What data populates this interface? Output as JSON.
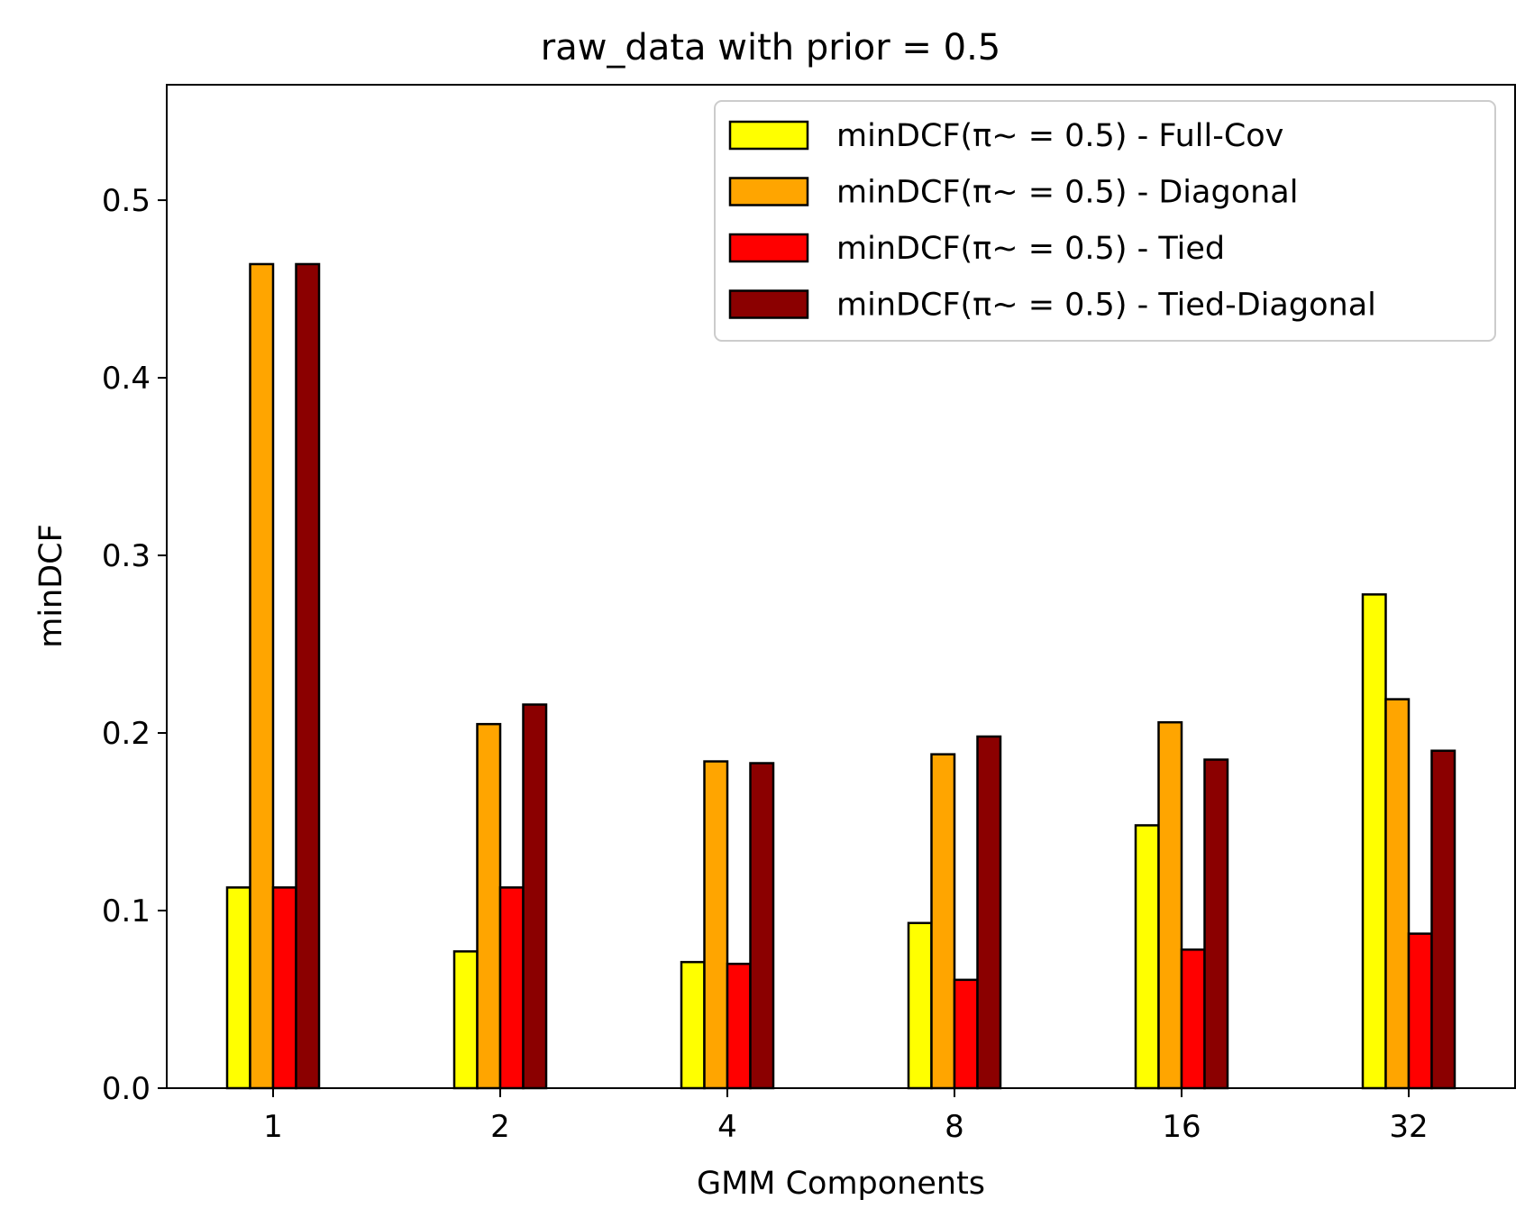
{
  "chart_data": {
    "type": "bar",
    "title": "raw_data with prior = 0.5",
    "xlabel": "GMM Components",
    "ylabel": "minDCF",
    "categories": [
      "1",
      "2",
      "4",
      "8",
      "16",
      "32"
    ],
    "ylim": [
      0,
      0.565
    ],
    "yticks": [
      "0.0",
      "0.1",
      "0.2",
      "0.3",
      "0.4",
      "0.5"
    ],
    "grid": false,
    "legend_position": "top-right",
    "series": [
      {
        "name": "minDCF(π~ = 0.5) - Full-Cov",
        "color": "#ffff00",
        "values": [
          0.113,
          0.077,
          0.071,
          0.093,
          0.148,
          0.278
        ]
      },
      {
        "name": "minDCF(π~ = 0.5) - Diagonal",
        "color": "#ffa500",
        "values": [
          0.464,
          0.205,
          0.184,
          0.188,
          0.206,
          0.219
        ]
      },
      {
        "name": "minDCF(π~ = 0.5) - Tied",
        "color": "#ff0000",
        "values": [
          0.113,
          0.113,
          0.07,
          0.061,
          0.078,
          0.087
        ]
      },
      {
        "name": "minDCF(π~ = 0.5) - Tied-Diagonal",
        "color": "#8b0000",
        "values": [
          0.464,
          0.216,
          0.183,
          0.198,
          0.185,
          0.19
        ]
      }
    ]
  }
}
